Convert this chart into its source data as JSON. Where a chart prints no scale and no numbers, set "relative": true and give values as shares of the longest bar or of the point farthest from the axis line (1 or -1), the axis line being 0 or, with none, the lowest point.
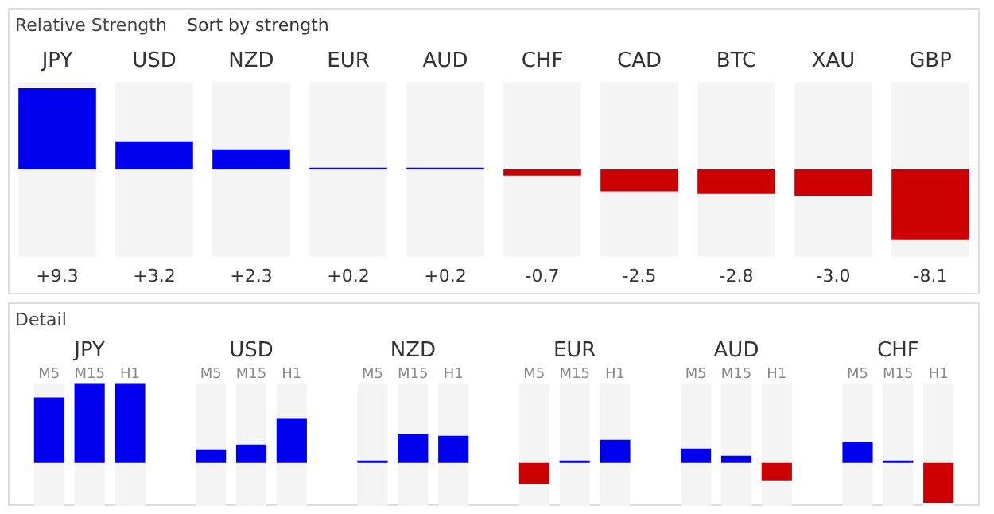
{
  "chart_data": [
    {
      "type": "bar",
      "title": "Relative Strength",
      "annotations": [
        "Sort by strength"
      ],
      "categories": [
        "JPY",
        "USD",
        "NZD",
        "EUR",
        "AUD",
        "CHF",
        "CAD",
        "BTC",
        "XAU",
        "GBP"
      ],
      "values": [
        9.3,
        3.2,
        2.3,
        0.2,
        0.2,
        -0.7,
        -2.5,
        -2.8,
        -3.0,
        -8.1
      ],
      "colors": [
        "#0000ee",
        "#0000ee",
        "#0000ee",
        "#0000ee",
        "#0000ee",
        "#cc0000",
        "#cc0000",
        "#cc0000",
        "#cc0000",
        "#cc0000"
      ],
      "value_labels": [
        "+9.3",
        "+3.2",
        "+2.3",
        "+0.2",
        "+0.2",
        "-0.7",
        "-2.5",
        "-2.8",
        "-3.0",
        "-8.1"
      ],
      "ylim": [
        -10,
        10
      ]
    },
    {
      "type": "bar",
      "title": "Detail",
      "relative": true,
      "categories": [
        "JPY",
        "USD",
        "NZD",
        "EUR",
        "AUD",
        "CHF"
      ],
      "series": [
        {
          "name": "M5",
          "values": [
            0.82,
            0.17,
            0.03,
            -0.26,
            0.18,
            0.26
          ],
          "colors": [
            "#0000ee",
            "#0000ee",
            "#0000ee",
            "#cc0000",
            "#0000ee",
            "#0000ee"
          ]
        },
        {
          "name": "M15",
          "values": [
            1,
            0.23,
            0.36,
            0.03,
            0.09,
            0.03
          ],
          "colors": [
            "#0000ee",
            "#0000ee",
            "#0000ee",
            "#0000ee",
            "#0000ee",
            "#0000ee"
          ]
        },
        {
          "name": "H1",
          "values": [
            1,
            0.56,
            0.34,
            0.29,
            -0.22,
            -0.5
          ],
          "colors": [
            "#0000ee",
            "#0000ee",
            "#0000ee",
            "#0000ee",
            "#cc0000",
            "#cc0000"
          ]
        }
      ]
    }
  ]
}
